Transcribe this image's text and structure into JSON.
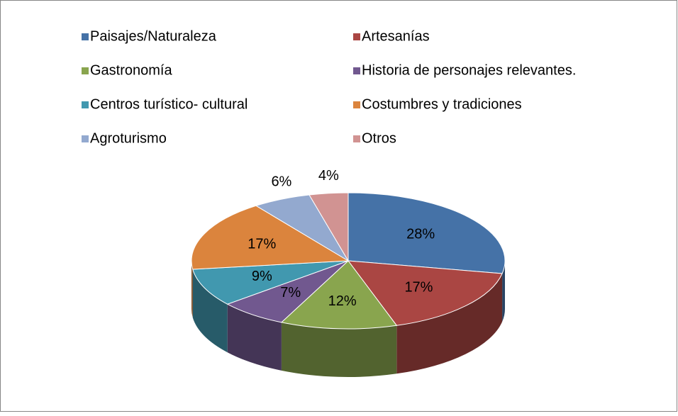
{
  "chart_data": {
    "type": "pie3d",
    "categories": [
      "Paisajes/Naturaleza",
      "Artesanías",
      "Gastronomía",
      "Historia de personajes relevantes.",
      "Centros turístico- cultural",
      "Costumbres y tradiciones",
      "Agroturismo",
      "Otros"
    ],
    "values": [
      28,
      17,
      12,
      7,
      9,
      17,
      6,
      4
    ],
    "value_labels": [
      "28%",
      "17%",
      "12%",
      "7%",
      "9%",
      "17%",
      "6%",
      "4%"
    ],
    "colors": [
      "#4572a7",
      "#aa4643",
      "#89a54e",
      "#71588f",
      "#4198af",
      "#db843d",
      "#93a9cf",
      "#d19392"
    ],
    "legend": "top"
  }
}
